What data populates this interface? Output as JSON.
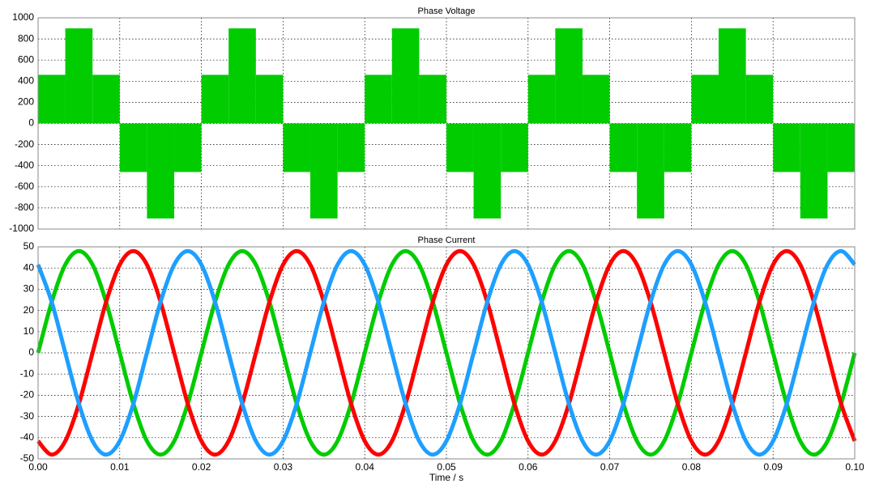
{
  "chart_data": [
    {
      "type": "step-area",
      "title": "Phase Voltage",
      "color": "#00cc00",
      "x": [
        0,
        0.00333,
        0.00667,
        0.01,
        0.01333,
        0.01667,
        0.02,
        0.02333,
        0.02667,
        0.03,
        0.03333,
        0.03667,
        0.04,
        0.04333,
        0.04667,
        0.05,
        0.05333,
        0.05667,
        0.06,
        0.06333,
        0.06667,
        0.07,
        0.07333,
        0.07667,
        0.08,
        0.08333,
        0.08667,
        0.09,
        0.09333,
        0.09667
      ],
      "values": [
        460,
        900,
        460,
        -460,
        -900,
        -460,
        460,
        900,
        460,
        -460,
        -900,
        -460,
        460,
        900,
        460,
        -460,
        -900,
        -460,
        460,
        900,
        460,
        -460,
        -900,
        -460,
        460,
        900,
        460,
        -460,
        -900,
        -460
      ],
      "xlim": [
        0,
        0.1
      ],
      "ylim": [
        -1000,
        1000
      ],
      "yticks": [
        -1000,
        -800,
        -600,
        -400,
        -200,
        0,
        200,
        400,
        600,
        800,
        1000
      ],
      "grid": true
    },
    {
      "type": "line",
      "title": "Phase Current",
      "x_label": "Time / s",
      "x": [
        0,
        0.00167,
        0.00333,
        0.005,
        0.00667,
        0.00833,
        0.01,
        0.01167,
        0.01333,
        0.015,
        0.01667,
        0.01833,
        0.02,
        0.02167,
        0.02333,
        0.025,
        0.02667,
        0.02833,
        0.03,
        0.03167,
        0.03333,
        0.035,
        0.03667,
        0.03833,
        0.04,
        0.04167,
        0.04333,
        0.045,
        0.04667,
        0.04833,
        0.05,
        0.05167,
        0.05333,
        0.055,
        0.05667,
        0.05833,
        0.06,
        0.06167,
        0.06333,
        0.065,
        0.06667,
        0.06833,
        0.07,
        0.07167,
        0.07333,
        0.075,
        0.07667,
        0.07833,
        0.08,
        0.08167,
        0.08333,
        0.085,
        0.08667,
        0.08833,
        0.09,
        0.09167,
        0.09333,
        0.095,
        0.09667,
        0.09833,
        0.1
      ],
      "series": [
        {
          "color": "#00cc00",
          "values": [
            0,
            24,
            41.6,
            48,
            41.6,
            24,
            0,
            -24,
            -41.6,
            -48,
            -41.6,
            -24,
            0,
            24,
            41.6,
            48,
            41.6,
            24,
            0,
            -24,
            -41.6,
            -48,
            -41.6,
            -24,
            0,
            24,
            41.6,
            48,
            41.6,
            24,
            0,
            -24,
            -41.6,
            -48,
            -41.6,
            -24,
            0,
            24,
            41.6,
            48,
            41.6,
            24,
            0,
            -24,
            -41.6,
            -48,
            -41.6,
            -24,
            0,
            24,
            41.6,
            48,
            41.6,
            24,
            0,
            -24,
            -41.6,
            -48,
            -41.6,
            -24,
            0
          ]
        },
        {
          "color": "#ff0000",
          "values": [
            -41.6,
            -48,
            -41.6,
            -24,
            0,
            24,
            41.6,
            48,
            41.6,
            24,
            0,
            -24,
            -41.6,
            -48,
            -41.6,
            -24,
            0,
            24,
            41.6,
            48,
            41.6,
            24,
            0,
            -24,
            -41.6,
            -48,
            -41.6,
            -24,
            0,
            24,
            41.6,
            48,
            41.6,
            24,
            0,
            -24,
            -41.6,
            -48,
            -41.6,
            -24,
            0,
            24,
            41.6,
            48,
            41.6,
            24,
            0,
            -24,
            -41.6,
            -48,
            -41.6,
            -24,
            0,
            24,
            41.6,
            48,
            41.6,
            24,
            0,
            -24,
            -41.6
          ]
        },
        {
          "color": "#1e9fff",
          "values": [
            41.6,
            24,
            0,
            -24,
            -41.6,
            -48,
            -41.6,
            -24,
            0,
            24,
            41.6,
            48,
            41.6,
            24,
            0,
            -24,
            -41.6,
            -48,
            -41.6,
            -24,
            0,
            24,
            41.6,
            48,
            41.6,
            24,
            0,
            -24,
            -41.6,
            -48,
            -41.6,
            -24,
            0,
            24,
            41.6,
            48,
            41.6,
            24,
            0,
            -24,
            -41.6,
            -48,
            -41.6,
            -24,
            0,
            24,
            41.6,
            48,
            41.6,
            24,
            0,
            -24,
            -41.6,
            -48,
            -41.6,
            -24,
            0,
            24,
            41.6,
            48,
            41.6
          ]
        }
      ],
      "xlim": [
        0,
        0.1
      ],
      "ylim": [
        -50,
        50
      ],
      "xticks": [
        {
          "value": 0,
          "label": "0.00"
        },
        {
          "value": 0.01,
          "label": "0.01"
        },
        {
          "value": 0.02,
          "label": "0.02"
        },
        {
          "value": 0.03,
          "label": "0.03"
        },
        {
          "value": 0.04,
          "label": "0.04"
        },
        {
          "value": 0.05,
          "label": "0.05"
        },
        {
          "value": 0.06,
          "label": "0.06"
        },
        {
          "value": 0.07,
          "label": "0.07"
        },
        {
          "value": 0.08,
          "label": "0.08"
        },
        {
          "value": 0.09,
          "label": "0.09"
        },
        {
          "value": 0.1,
          "label": "0.10"
        }
      ],
      "yticks": [
        -50,
        -40,
        -30,
        -20,
        -10,
        0,
        10,
        20,
        30,
        40,
        50
      ],
      "grid": true
    }
  ]
}
